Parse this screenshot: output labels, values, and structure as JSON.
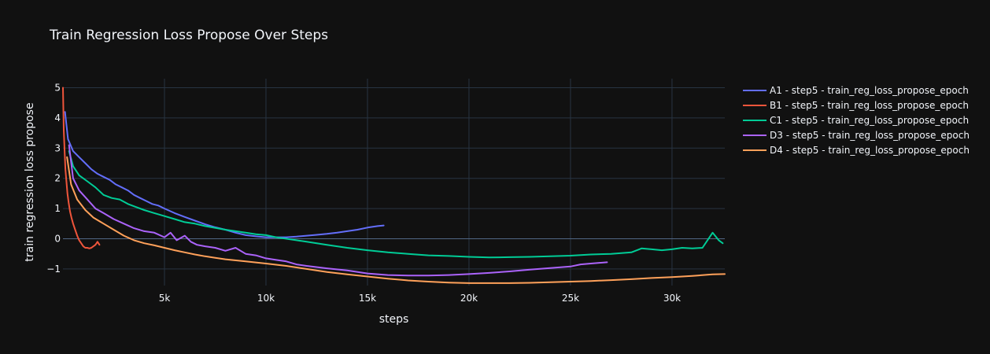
{
  "chart_data": {
    "type": "line",
    "title": "Train Regression Loss Propose Over Steps",
    "xlabel": "steps",
    "ylabel": "train regression loss propose",
    "xlim": [
      0,
      32600
    ],
    "ylim": [
      -1.55,
      5.3
    ],
    "xticks": [
      5000,
      10000,
      15000,
      20000,
      25000,
      30000
    ],
    "xtick_labels": [
      "5k",
      "10k",
      "15k",
      "20k",
      "25k",
      "30k"
    ],
    "yticks": [
      -1,
      0,
      1,
      2,
      3,
      4,
      5
    ],
    "ytick_labels": [
      "−1",
      "0",
      "1",
      "2",
      "3",
      "4",
      "5"
    ],
    "grid": true,
    "legend_position": "right",
    "background": "#111111",
    "series": [
      {
        "name": "A1 - step5 - train_reg_loss_propose_epoch",
        "color": "#636efa",
        "x": [
          100,
          250,
          500,
          800,
          1100,
          1400,
          1700,
          2000,
          2300,
          2600,
          2900,
          3200,
          3500,
          3800,
          4100,
          4400,
          4700,
          5000,
          5500,
          6000,
          6500,
          7000,
          7500,
          8000,
          8500,
          9000,
          9500,
          10000,
          10500,
          11000,
          11500,
          12000,
          12500,
          13000,
          13500,
          14000,
          14500,
          15000,
          15500,
          15800
        ],
        "y": [
          4.2,
          3.3,
          2.9,
          2.7,
          2.5,
          2.3,
          2.15,
          2.05,
          1.95,
          1.8,
          1.7,
          1.6,
          1.45,
          1.35,
          1.25,
          1.15,
          1.1,
          1.0,
          0.85,
          0.72,
          0.6,
          0.48,
          0.38,
          0.3,
          0.2,
          0.12,
          0.08,
          0.05,
          0.05,
          0.05,
          0.07,
          0.1,
          0.13,
          0.16,
          0.2,
          0.25,
          0.3,
          0.37,
          0.42,
          0.44
        ]
      },
      {
        "name": "B1 - step5 - train_reg_loss_propose_epoch",
        "color": "#ef553b",
        "x": [
          0,
          40,
          80,
          120,
          170,
          220,
          280,
          350,
          420,
          500,
          600,
          700,
          800,
          900,
          1000,
          1100,
          1200,
          1300,
          1400,
          1500,
          1600,
          1700,
          1800
        ],
        "y": [
          5.0,
          3.6,
          2.9,
          2.3,
          1.9,
          1.5,
          1.2,
          0.9,
          0.7,
          0.5,
          0.3,
          0.1,
          -0.05,
          -0.15,
          -0.25,
          -0.3,
          -0.3,
          -0.32,
          -0.3,
          -0.25,
          -0.2,
          -0.1,
          -0.2
        ]
      },
      {
        "name": "C1 - step5 - train_reg_loss_propose_epoch",
        "color": "#00cc96",
        "x": [
          300,
          500,
          800,
          1200,
          1600,
          2000,
          2400,
          2800,
          3200,
          3600,
          4000,
          4500,
          5000,
          5500,
          6000,
          6500,
          7000,
          8000,
          9000,
          9500,
          10000,
          10500,
          11000,
          11500,
          12000,
          13000,
          14000,
          15000,
          16000,
          17000,
          18000,
          19000,
          20000,
          21000,
          22000,
          23000,
          24000,
          25000,
          26000,
          27000,
          28000,
          28500,
          29000,
          29500,
          30000,
          30500,
          31000,
          31500,
          32000,
          32300,
          32500
        ],
        "y": [
          2.9,
          2.4,
          2.1,
          1.9,
          1.7,
          1.45,
          1.35,
          1.3,
          1.15,
          1.05,
          0.95,
          0.85,
          0.75,
          0.65,
          0.55,
          0.5,
          0.42,
          0.3,
          0.2,
          0.15,
          0.12,
          0.05,
          0.0,
          -0.05,
          -0.1,
          -0.2,
          -0.3,
          -0.38,
          -0.45,
          -0.5,
          -0.55,
          -0.57,
          -0.6,
          -0.62,
          -0.61,
          -0.6,
          -0.58,
          -0.56,
          -0.52,
          -0.5,
          -0.45,
          -0.32,
          -0.35,
          -0.38,
          -0.35,
          -0.3,
          -0.32,
          -0.3,
          0.2,
          -0.05,
          -0.15
        ]
      },
      {
        "name": "D3 - step5 - train_reg_loss_propose_epoch",
        "color": "#ab63fa",
        "x": [
          300,
          500,
          800,
          1200,
          1600,
          2000,
          2500,
          3000,
          3500,
          4000,
          4500,
          5000,
          5300,
          5600,
          6000,
          6300,
          6600,
          7000,
          7500,
          8000,
          8500,
          9000,
          9500,
          10000,
          10500,
          11000,
          11500,
          12000,
          13000,
          14000,
          15000,
          16000,
          17000,
          18000,
          19000,
          20000,
          21000,
          22000,
          23000,
          24000,
          25000,
          25500,
          26000,
          26800
        ],
        "y": [
          3.1,
          2.0,
          1.6,
          1.3,
          1.0,
          0.85,
          0.65,
          0.5,
          0.35,
          0.25,
          0.2,
          0.05,
          0.2,
          -0.05,
          0.1,
          -0.1,
          -0.2,
          -0.25,
          -0.3,
          -0.4,
          -0.3,
          -0.5,
          -0.55,
          -0.65,
          -0.7,
          -0.75,
          -0.85,
          -0.9,
          -0.98,
          -1.05,
          -1.15,
          -1.2,
          -1.22,
          -1.22,
          -1.2,
          -1.17,
          -1.13,
          -1.08,
          -1.02,
          -0.97,
          -0.92,
          -0.85,
          -0.82,
          -0.78
        ]
      },
      {
        "name": "D4 - step5 - train_reg_loss_propose_epoch",
        "color": "#ffa15a",
        "x": [
          200,
          400,
          700,
          1100,
          1500,
          2000,
          2500,
          3000,
          3500,
          4000,
          4500,
          5000,
          5500,
          6000,
          6500,
          7000,
          7500,
          8000,
          9000,
          10000,
          11000,
          12000,
          13000,
          14000,
          15000,
          16000,
          17000,
          18000,
          19000,
          20000,
          21000,
          22000,
          23000,
          24000,
          25000,
          26000,
          27000,
          28000,
          29000,
          30000,
          31000,
          32000,
          32600
        ],
        "y": [
          2.7,
          1.8,
          1.3,
          0.95,
          0.7,
          0.5,
          0.3,
          0.1,
          -0.05,
          -0.15,
          -0.22,
          -0.3,
          -0.38,
          -0.45,
          -0.52,
          -0.58,
          -0.63,
          -0.68,
          -0.75,
          -0.82,
          -0.9,
          -1.0,
          -1.1,
          -1.18,
          -1.25,
          -1.32,
          -1.38,
          -1.42,
          -1.45,
          -1.47,
          -1.47,
          -1.47,
          -1.46,
          -1.44,
          -1.42,
          -1.4,
          -1.37,
          -1.34,
          -1.3,
          -1.27,
          -1.23,
          -1.18,
          -1.17
        ]
      }
    ]
  }
}
